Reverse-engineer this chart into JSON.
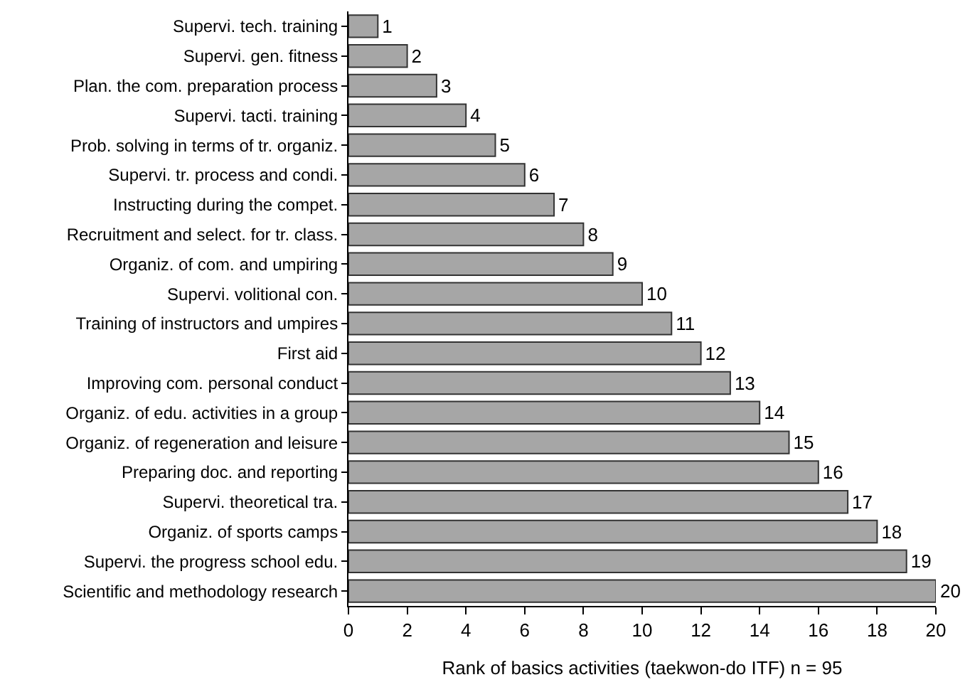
{
  "chart_data": {
    "type": "bar",
    "orientation": "horizontal",
    "categories": [
      "Supervi. tech. training",
      "Supervi. gen. fitness",
      "Plan. the com. preparation process",
      "Supervi. tacti. training",
      "Prob. solving in terms of tr. organiz.",
      "Supervi. tr. process and condi.",
      "Instructing during the compet.",
      "Recruitment and select. for tr. class.",
      "Organiz. of com. and umpiring",
      "Supervi. volitional con.",
      "Training of instructors and umpires",
      "First aid",
      "Improving com. personal conduct",
      "Organiz. of edu. activities in a group",
      "Organiz. of regeneration and leisure",
      "Preparing doc. and reporting",
      "Supervi. theoretical tra.",
      "Organiz. of sports camps",
      "Supervi. the progress school edu.",
      "Scientific and methodology research"
    ],
    "values": [
      1,
      2,
      3,
      4,
      5,
      6,
      7,
      8,
      9,
      10,
      11,
      12,
      13,
      14,
      15,
      16,
      17,
      18,
      19,
      20
    ],
    "color": "#a6a6a6",
    "xlim": [
      0,
      20
    ],
    "xticks": [
      0,
      2,
      4,
      6,
      8,
      10,
      12,
      14,
      16,
      18,
      20
    ],
    "xlabel": "Rank of basics activities (taekwon-do ITF) n = 95",
    "data_labels": true
  }
}
